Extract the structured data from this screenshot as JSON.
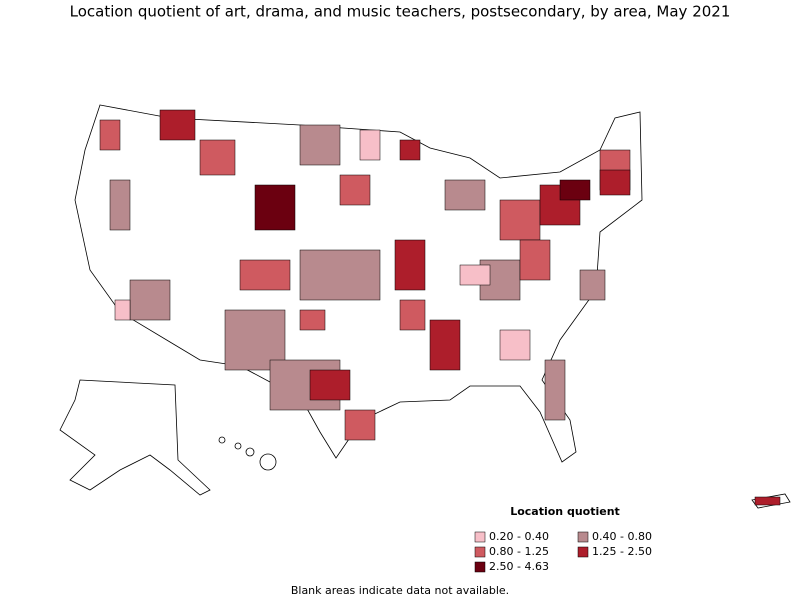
{
  "title": "Location quotient of art, drama, and music teachers, postsecondary, by area, May 2021",
  "legend": {
    "title": "Location quotient",
    "items": [
      {
        "label": "0.20 - 0.40",
        "color": "#f7bfc8"
      },
      {
        "label": "0.40 - 0.80",
        "color": "#b88a8e"
      },
      {
        "label": "0.80 - 1.25",
        "color": "#cf5a60"
      },
      {
        "label": "1.25 - 2.50",
        "color": "#ad1e2b"
      },
      {
        "label": "2.50 - 4.63",
        "color": "#6b0010"
      }
    ]
  },
  "note": "Blank areas indicate data not available."
}
